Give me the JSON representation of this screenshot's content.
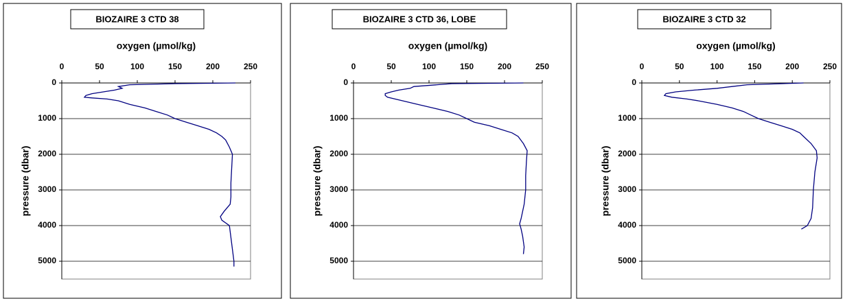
{
  "chart_data": [
    {
      "type": "line",
      "title": "BIOZAIRE 3 CTD 38",
      "x_label": "oxygen (µmol/kg)",
      "y_label": "pressure (dbar)",
      "color": "#000080",
      "xlim": [
        0,
        250
      ],
      "xticks": [
        0,
        50,
        100,
        150,
        200,
        250
      ],
      "ylim": [
        0,
        5500
      ],
      "yticks": [
        0,
        1000,
        2000,
        3000,
        4000,
        5000
      ],
      "y_inverted": true,
      "x_axis_top": true,
      "grid": true,
      "x": [
        230,
        150,
        90,
        75,
        80,
        70,
        55,
        40,
        32,
        30,
        40,
        60,
        75,
        90,
        110,
        125,
        140,
        150,
        165,
        180,
        195,
        205,
        212,
        217,
        222,
        226,
        225,
        224,
        224,
        223,
        215,
        210,
        212,
        222,
        225,
        228,
        228
      ],
      "values": [
        0,
        20,
        50,
        100,
        150,
        200,
        250,
        300,
        350,
        400,
        420,
        450,
        500,
        600,
        700,
        800,
        900,
        1000,
        1100,
        1200,
        1300,
        1400,
        1500,
        1600,
        1800,
        2000,
        2400,
        2800,
        3200,
        3400,
        3600,
        3750,
        3850,
        4000,
        4500,
        5000,
        5150
      ]
    },
    {
      "type": "line",
      "title": "BIOZAIRE 3 CTD 36, LOBE",
      "x_label": "oxygen (µmol/kg)",
      "y_label": "pressure (dbar)",
      "color": "#000080",
      "xlim": [
        0,
        250
      ],
      "xticks": [
        0,
        50,
        100,
        150,
        200,
        250
      ],
      "ylim": [
        0,
        5500
      ],
      "yticks": [
        0,
        1000,
        2000,
        3000,
        4000,
        5000
      ],
      "y_inverted": true,
      "x_axis_top": true,
      "grid": true,
      "x": [
        225,
        130,
        80,
        75,
        60,
        50,
        42,
        42,
        45,
        65,
        85,
        105,
        125,
        140,
        150,
        160,
        180,
        195,
        210,
        218,
        225,
        230,
        229,
        228,
        228,
        226,
        222,
        220,
        222,
        224,
        226,
        225
      ],
      "values": [
        0,
        20,
        100,
        150,
        200,
        250,
        300,
        350,
        400,
        500,
        600,
        700,
        800,
        900,
        1000,
        1100,
        1200,
        1300,
        1400,
        1500,
        1700,
        1900,
        2200,
        2600,
        3000,
        3400,
        3800,
        3950,
        4100,
        4300,
        4600,
        4800
      ]
    },
    {
      "type": "line",
      "title": "BIOZAIRE 3 CTD 32",
      "x_label": "oxygen (µmol/kg)",
      "y_label": "pressure (dbar)",
      "color": "#000080",
      "xlim": [
        0,
        250
      ],
      "xticks": [
        0,
        50,
        100,
        150,
        200,
        250
      ],
      "ylim": [
        0,
        5500
      ],
      "yticks": [
        0,
        1000,
        2000,
        3000,
        4000,
        5000
      ],
      "y_inverted": true,
      "x_axis_top": true,
      "grid": true,
      "x": [
        215,
        140,
        120,
        100,
        70,
        45,
        32,
        30,
        40,
        60,
        75,
        100,
        120,
        135,
        145,
        155,
        170,
        185,
        200,
        210,
        215,
        225,
        232,
        233,
        230,
        228,
        227,
        225,
        220,
        212
      ],
      "values": [
        0,
        50,
        100,
        150,
        200,
        250,
        300,
        350,
        400,
        450,
        500,
        600,
        700,
        800,
        900,
        1000,
        1100,
        1200,
        1300,
        1400,
        1500,
        1700,
        1900,
        2100,
        2500,
        3000,
        3500,
        3800,
        4000,
        4100
      ]
    }
  ]
}
